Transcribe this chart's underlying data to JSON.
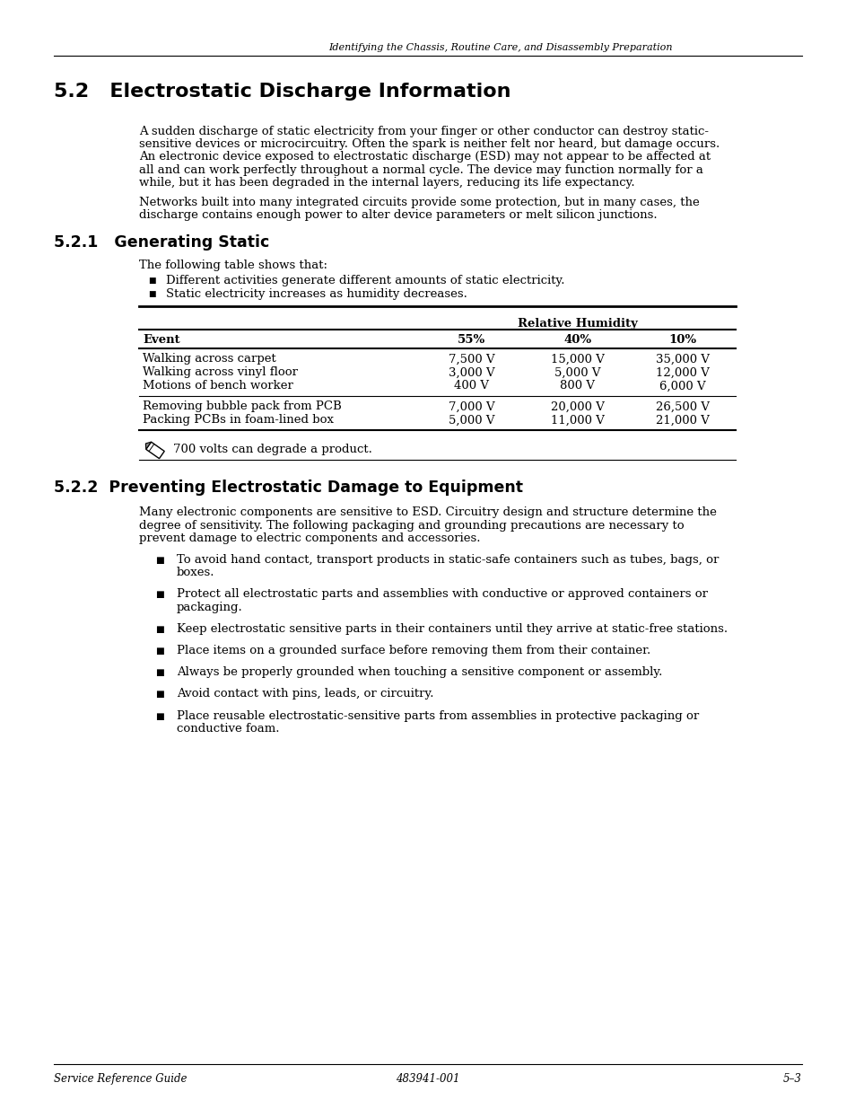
{
  "header_italic": "Identifying the Chassis, Routine Care, and Disassembly Preparation",
  "title": "5.2   Electrostatic Discharge Information",
  "para1_lines": [
    "A sudden discharge of static electricity from your finger or other conductor can destroy static-",
    "sensitive devices or microcircuitry. Often the spark is neither felt nor heard, but damage occurs.",
    "An electronic device exposed to electrostatic discharge (ESD) may not appear to be affected at",
    "all and can work perfectly throughout a normal cycle. The device may function normally for a",
    "while, but it has been degraded in the internal layers, reducing its life expectancy."
  ],
  "para2_lines": [
    "Networks built into many integrated circuits provide some protection, but in many cases, the",
    "discharge contains enough power to alter device parameters or melt silicon junctions."
  ],
  "section1_title": "5.2.1   Generating Static",
  "section1_intro": "The following table shows that:",
  "bullet1": "Different activities generate different amounts of static electricity.",
  "bullet2": "Static electricity increases as humidity decreases.",
  "table_header_span": "Relative Humidity",
  "table_col_headers": [
    "Event",
    "55%",
    "40%",
    "10%"
  ],
  "table_row_group1": [
    [
      "Walking across carpet",
      "7,500 V",
      "15,000 V",
      "35,000 V"
    ],
    [
      "Walking across vinyl floor",
      "3,000 V",
      "5,000 V",
      "12,000 V"
    ],
    [
      "Motions of bench worker",
      "400 V",
      "800 V",
      "6,000 V"
    ]
  ],
  "table_row_group2": [
    [
      "Removing bubble pack from PCB",
      "7,000 V",
      "20,000 V",
      "26,500 V"
    ],
    [
      "Packing PCBs in foam-lined box",
      "5,000 V",
      "11,000 V",
      "21,000 V"
    ]
  ],
  "note_text": "700 volts can degrade a product.",
  "section2_title": "5.2.2  Preventing Electrostatic Damage to Equipment",
  "section2_para_lines": [
    "Many electronic components are sensitive to ESD. Circuitry design and structure determine the",
    "degree of sensitivity. The following packaging and grounding precautions are necessary to",
    "prevent damage to electric components and accessories."
  ],
  "section2_bullets": [
    [
      "To avoid hand contact, transport products in static-safe containers such as tubes, bags, or",
      "boxes."
    ],
    [
      "Protect all electrostatic parts and assemblies with conductive or approved containers or",
      "packaging."
    ],
    [
      "Keep electrostatic sensitive parts in their containers until they arrive at static-free stations."
    ],
    [
      "Place items on a grounded surface before removing them from their container."
    ],
    [
      "Always be properly grounded when touching a sensitive component or assembly."
    ],
    [
      "Avoid contact with pins, leads, or circuitry."
    ],
    [
      "Place reusable electrostatic-sensitive parts from assemblies in protective packaging or",
      "conductive foam."
    ]
  ],
  "footer_left": "Service Reference Guide",
  "footer_center": "483941-001",
  "footer_right": "5–3",
  "bg_color": "#ffffff",
  "text_color": "#000000"
}
